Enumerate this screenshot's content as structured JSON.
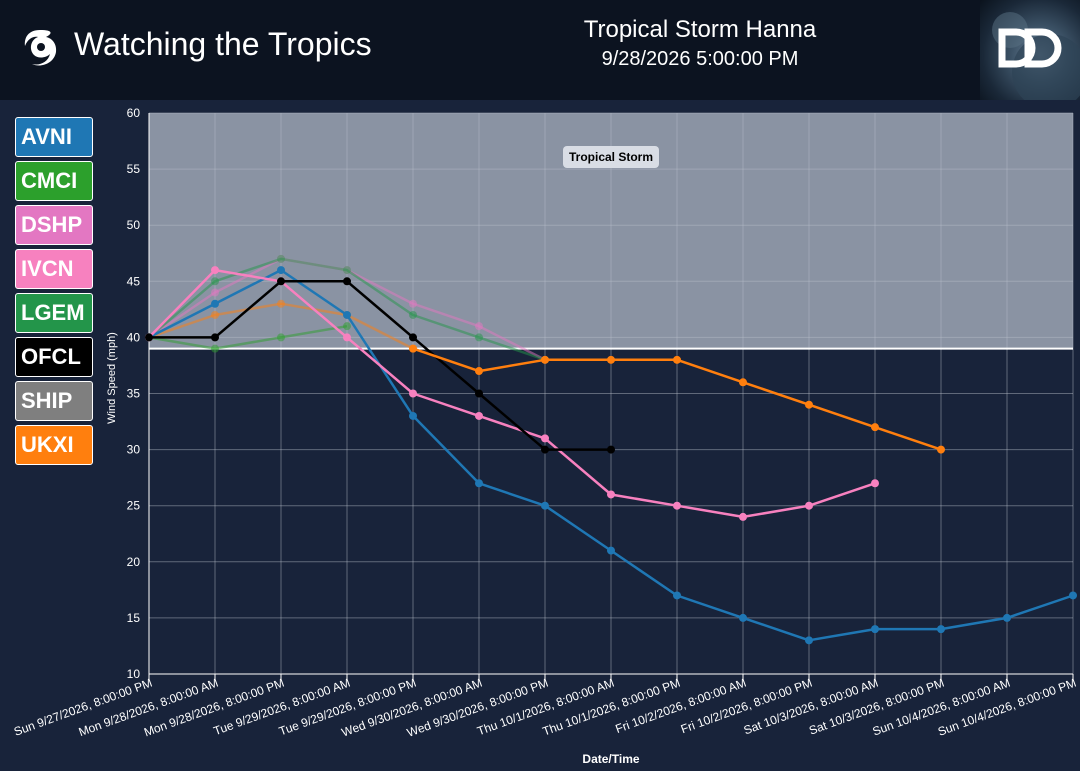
{
  "header": {
    "app_title": "Watching the Tropics",
    "storm_name": "Tropical Storm Hanna",
    "timestamp": "9/28/2026 5:00:00 PM",
    "logo_icon": "dd-globe-logo",
    "brand_icon": "hurricane-icon"
  },
  "legend": [
    {
      "label": "AVNI",
      "color": "#1f77b4"
    },
    {
      "label": "CMCI",
      "color": "#2ca02c"
    },
    {
      "label": "DSHP",
      "color": "#e377c2"
    },
    {
      "label": "IVCN",
      "color": "#f781bf"
    },
    {
      "label": "LGEM",
      "color": "#23954a"
    },
    {
      "label": "OFCL",
      "color": "#000000"
    },
    {
      "label": "SHIP",
      "color": "#7f7f7f"
    },
    {
      "label": "UKXI",
      "color": "#ff7f0e"
    }
  ],
  "chart_data": {
    "type": "line",
    "xlabel": "Date/Time",
    "ylabel": "Wind Speed (mph)",
    "ylim": [
      10,
      60
    ],
    "yticks": [
      10,
      15,
      20,
      25,
      30,
      35,
      40,
      45,
      50,
      55,
      60
    ],
    "grid": true,
    "band": {
      "label": "Tropical Storm",
      "from": 39,
      "to": 60,
      "color": "#8a93a3"
    },
    "x": [
      "Sun 9/27/2026, 8:00:00 PM",
      "Mon 9/28/2026, 8:00:00 AM",
      "Mon 9/28/2026, 8:00:00 PM",
      "Tue 9/29/2026, 8:00:00 AM",
      "Tue 9/29/2026, 8:00:00 PM",
      "Wed 9/30/2026, 8:00:00 AM",
      "Wed 9/30/2026, 8:00:00 PM",
      "Thu 10/1/2026, 8:00:00 AM",
      "Thu 10/1/2026, 8:00:00 PM",
      "Fri 10/2/2026, 8:00:00 AM",
      "Fri 10/2/2026, 8:00:00 PM",
      "Sat 10/3/2026, 8:00:00 AM",
      "Sat 10/3/2026, 8:00:00 PM",
      "Sun 10/4/2026, 8:00:00 AM",
      "Sun 10/4/2026, 8:00:00 PM"
    ],
    "series": [
      {
        "name": "AVNI",
        "color": "#1f77b4",
        "faded": false,
        "values": [
          40,
          43,
          46,
          42,
          33,
          27,
          25,
          21,
          17,
          15,
          13,
          14,
          14,
          15,
          17
        ]
      },
      {
        "name": "CMCI",
        "color": "#2ca02c",
        "faded": true,
        "values": [
          40,
          39,
          40,
          41,
          null,
          null,
          null,
          null,
          null,
          null,
          null,
          null,
          null,
          null,
          null
        ]
      },
      {
        "name": "DSHP",
        "color": "#e377c2",
        "faded": true,
        "values": [
          40,
          44,
          47,
          46,
          43,
          41,
          38,
          null,
          null,
          null,
          null,
          null,
          null,
          null,
          null
        ]
      },
      {
        "name": "IVCN",
        "color": "#f781bf",
        "faded": false,
        "values": [
          40,
          46,
          45,
          40,
          35,
          33,
          31,
          26,
          25,
          24,
          25,
          27,
          null,
          null,
          null
        ]
      },
      {
        "name": "LGEM",
        "color": "#23954a",
        "faded": true,
        "values": [
          40,
          45,
          47,
          46,
          42,
          40,
          38,
          null,
          null,
          null,
          null,
          null,
          null,
          null,
          null
        ]
      },
      {
        "name": "OFCL",
        "color": "#000000",
        "faded": false,
        "values": [
          40,
          40,
          45,
          45,
          40,
          35,
          30,
          30,
          null,
          null,
          null,
          null,
          null,
          null,
          null
        ]
      },
      {
        "name": "SHIP",
        "color": "#7f7f7f",
        "faded": true,
        "values": [
          40,
          40,
          45,
          45,
          40,
          null,
          null,
          null,
          null,
          null,
          null,
          null,
          null,
          null,
          null
        ]
      },
      {
        "name": "UKXI",
        "color": "#ff7f0e",
        "faded": false,
        "values": [
          null,
          null,
          null,
          null,
          39,
          37,
          38,
          38,
          38,
          36,
          34,
          32,
          30,
          null,
          null
        ]
      },
      {
        "name": "UKXI",
        "color": "#ff7f0e",
        "faded": true,
        "values": [
          40,
          42,
          43,
          42,
          39,
          null,
          null,
          null,
          null,
          null,
          null,
          null,
          null,
          null,
          null
        ]
      }
    ]
  }
}
